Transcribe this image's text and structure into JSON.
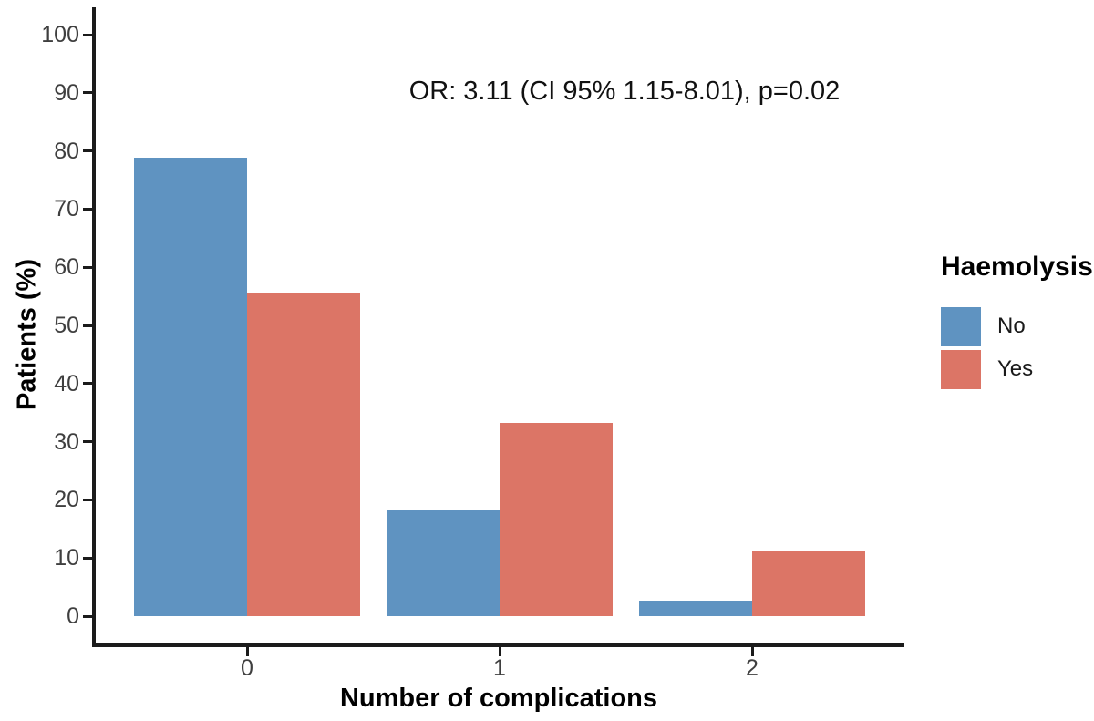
{
  "chart_data": {
    "type": "bar",
    "annotation": "OR: 3.11 (CI 95% 1.15-8.01), p=0.02",
    "xlabel": "Number of complications",
    "ylabel": "Patients (%)",
    "categories": [
      "0",
      "1",
      "2"
    ],
    "series": [
      {
        "name": "No",
        "color": "#5f93c1",
        "values": [
          78.9,
          18.4,
          2.6
        ]
      },
      {
        "name": "Yes",
        "color": "#dc7566",
        "values": [
          55.6,
          33.3,
          11.1
        ]
      }
    ],
    "ylim": [
      0,
      100
    ],
    "yticks": [
      0,
      10,
      20,
      30,
      40,
      50,
      60,
      70,
      80,
      90,
      100
    ],
    "grid": false,
    "legend": {
      "title": "Haemolysis",
      "position": "right"
    },
    "colors": {
      "axis": "#1b1b1b",
      "tick_label": "#3f3f3f",
      "text": "#000000"
    }
  }
}
